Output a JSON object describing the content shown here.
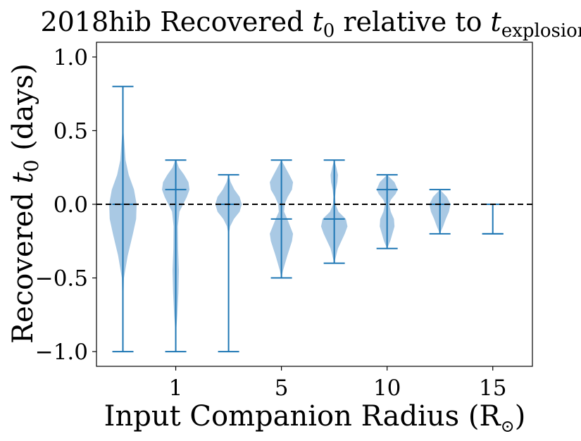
{
  "chart_data": {
    "type": "violin",
    "title_main": "2018hib Recovered ",
    "title_var": "t",
    "title_var_sub": "0",
    "title_mid": " relative to ",
    "title_end_var": "t",
    "title_end_sub": "explosion",
    "xlabel_text": "Input Companion Radius (R",
    "xlabel_symbol": "⊙",
    "xlabel_close": ")",
    "ylabel_text": "Recovered ",
    "ylabel_var": "t",
    "ylabel_sub": "0",
    "ylabel_unit": "  (days)",
    "ylim": [
      -1.1,
      1.1
    ],
    "yticks": [
      -1.0,
      -0.5,
      0.0,
      0.5,
      1.0
    ],
    "ytick_labels": [
      "−1.0",
      "−0.5",
      "0.0",
      "0.5",
      "1.0"
    ],
    "xlim": [
      0.5,
      8.75
    ],
    "xtick_positions": [
      2,
      4,
      6,
      8
    ],
    "xtick_labels": [
      "1",
      "5",
      "10",
      "15"
    ],
    "reference_line": {
      "y": 0.0,
      "style": "dashed",
      "color": "#000000"
    },
    "colors": {
      "body": "#a9c9e4",
      "lines": "#1f77b4"
    },
    "violins": [
      {
        "pos": 1,
        "min": -1.0,
        "max": 0.8,
        "median": 0.0,
        "profile": [
          [
            -1.0,
            0.0
          ],
          [
            -0.7,
            0.005
          ],
          [
            -0.5,
            0.02
          ],
          [
            -0.35,
            0.09
          ],
          [
            -0.2,
            0.19
          ],
          [
            -0.1,
            0.25
          ],
          [
            0.0,
            0.26
          ],
          [
            0.1,
            0.21
          ],
          [
            0.2,
            0.11
          ],
          [
            0.3,
            0.05
          ],
          [
            0.5,
            0.01
          ],
          [
            0.8,
            0.0
          ]
        ]
      },
      {
        "pos": 2,
        "min": -1.0,
        "max": 0.3,
        "median": 0.1,
        "profile": [
          [
            -1.0,
            0.0
          ],
          [
            -0.85,
            0.01
          ],
          [
            -0.75,
            0.03
          ],
          [
            -0.6,
            0.05
          ],
          [
            -0.45,
            0.06
          ],
          [
            -0.3,
            0.045
          ],
          [
            -0.15,
            0.04
          ],
          [
            -0.05,
            0.07
          ],
          [
            0.05,
            0.21
          ],
          [
            0.1,
            0.26
          ],
          [
            0.15,
            0.24
          ],
          [
            0.2,
            0.16
          ],
          [
            0.25,
            0.06
          ],
          [
            0.3,
            0.01
          ]
        ]
      },
      {
        "pos": 3,
        "min": -1.0,
        "max": 0.2,
        "median": 0.0,
        "profile": [
          [
            -1.0,
            0.0
          ],
          [
            -0.2,
            0.005
          ],
          [
            -0.15,
            0.03
          ],
          [
            -0.1,
            0.1
          ],
          [
            -0.05,
            0.21
          ],
          [
            0.0,
            0.25
          ],
          [
            0.05,
            0.21
          ],
          [
            0.1,
            0.11
          ],
          [
            0.15,
            0.04
          ],
          [
            0.2,
            0.0
          ]
        ]
      },
      {
        "pos": 4,
        "min": -0.5,
        "max": 0.3,
        "median": -0.1,
        "profile": [
          [
            -0.5,
            0.0
          ],
          [
            -0.45,
            0.03
          ],
          [
            -0.35,
            0.11
          ],
          [
            -0.25,
            0.2
          ],
          [
            -0.2,
            0.22
          ],
          [
            -0.1,
            0.11
          ],
          [
            -0.05,
            0.05
          ],
          [
            0.0,
            0.06
          ],
          [
            0.05,
            0.12
          ],
          [
            0.1,
            0.2
          ],
          [
            0.15,
            0.22
          ],
          [
            0.2,
            0.15
          ],
          [
            0.3,
            0.0
          ]
        ]
      },
      {
        "pos": 5,
        "min": -0.4,
        "max": 0.3,
        "median": -0.1,
        "profile": [
          [
            -0.4,
            0.0
          ],
          [
            -0.3,
            0.07
          ],
          [
            -0.2,
            0.2
          ],
          [
            -0.15,
            0.25
          ],
          [
            -0.1,
            0.22
          ],
          [
            -0.05,
            0.08
          ],
          [
            0.0,
            0.025
          ],
          [
            0.05,
            0.015
          ],
          [
            0.1,
            0.03
          ],
          [
            0.15,
            0.06
          ],
          [
            0.2,
            0.07
          ],
          [
            0.25,
            0.04
          ],
          [
            0.3,
            0.0
          ]
        ]
      },
      {
        "pos": 6,
        "min": -0.3,
        "max": 0.2,
        "median": 0.1,
        "profile": [
          [
            -0.3,
            0.0
          ],
          [
            -0.25,
            0.06
          ],
          [
            -0.15,
            0.14
          ],
          [
            -0.1,
            0.13
          ],
          [
            -0.05,
            0.07
          ],
          [
            0.0,
            0.04
          ],
          [
            0.03,
            0.07
          ],
          [
            0.07,
            0.16
          ],
          [
            0.1,
            0.2
          ],
          [
            0.15,
            0.14
          ],
          [
            0.2,
            0.0
          ]
        ]
      },
      {
        "pos": 7,
        "min": -0.2,
        "max": 0.1,
        "median": 0.0,
        "profile": [
          [
            -0.2,
            0.0
          ],
          [
            -0.15,
            0.06
          ],
          [
            -0.1,
            0.11
          ],
          [
            -0.05,
            0.17
          ],
          [
            0.0,
            0.2
          ],
          [
            0.05,
            0.13
          ],
          [
            0.1,
            0.0
          ]
        ]
      },
      {
        "pos": 8,
        "min": -0.2,
        "max": 0.0,
        "median": -0.2,
        "profile": []
      }
    ]
  }
}
